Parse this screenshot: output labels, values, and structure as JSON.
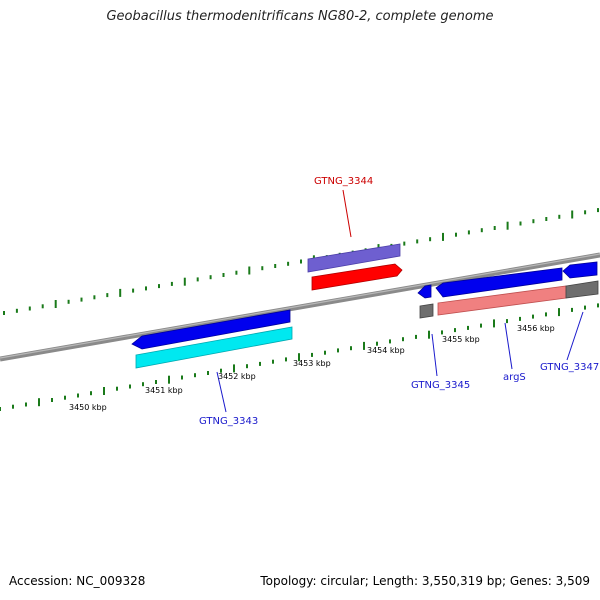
{
  "title": "Geobacillus thermodenitrificans NG80-2, complete genome",
  "footer": {
    "accession": "Accession: NC_009328",
    "topology": "Topology: circular; Length: 3,550,319 bp; Genes: 3,509"
  },
  "scale_labels": [
    "3450 kbp",
    "3451 kbp",
    "3452 kbp",
    "3453 kbp",
    "3454 kbp",
    "3455 kbp",
    "3456 kbp"
  ],
  "genes": [
    {
      "name": "GTNG_3343",
      "color": "#1a1acc"
    },
    {
      "name": "GTNG_3344",
      "color": "#cc0000"
    },
    {
      "name": "GTNG_3345",
      "color": "#1a1acc"
    },
    {
      "name": "argS",
      "color": "#1a1acc"
    },
    {
      "name": "GTNG_3347",
      "color": "#1a1acc"
    }
  ],
  "colors": {
    "forward_gene": "#ff0000",
    "reverse_gene": "#0000ee",
    "forward_cds": "#7060d0",
    "reverse_cds": "#00e5ee",
    "rna_cds": "#f08080",
    "pseudo": "#707070",
    "tick": "#1a7a1a",
    "backbone": "#808080"
  }
}
